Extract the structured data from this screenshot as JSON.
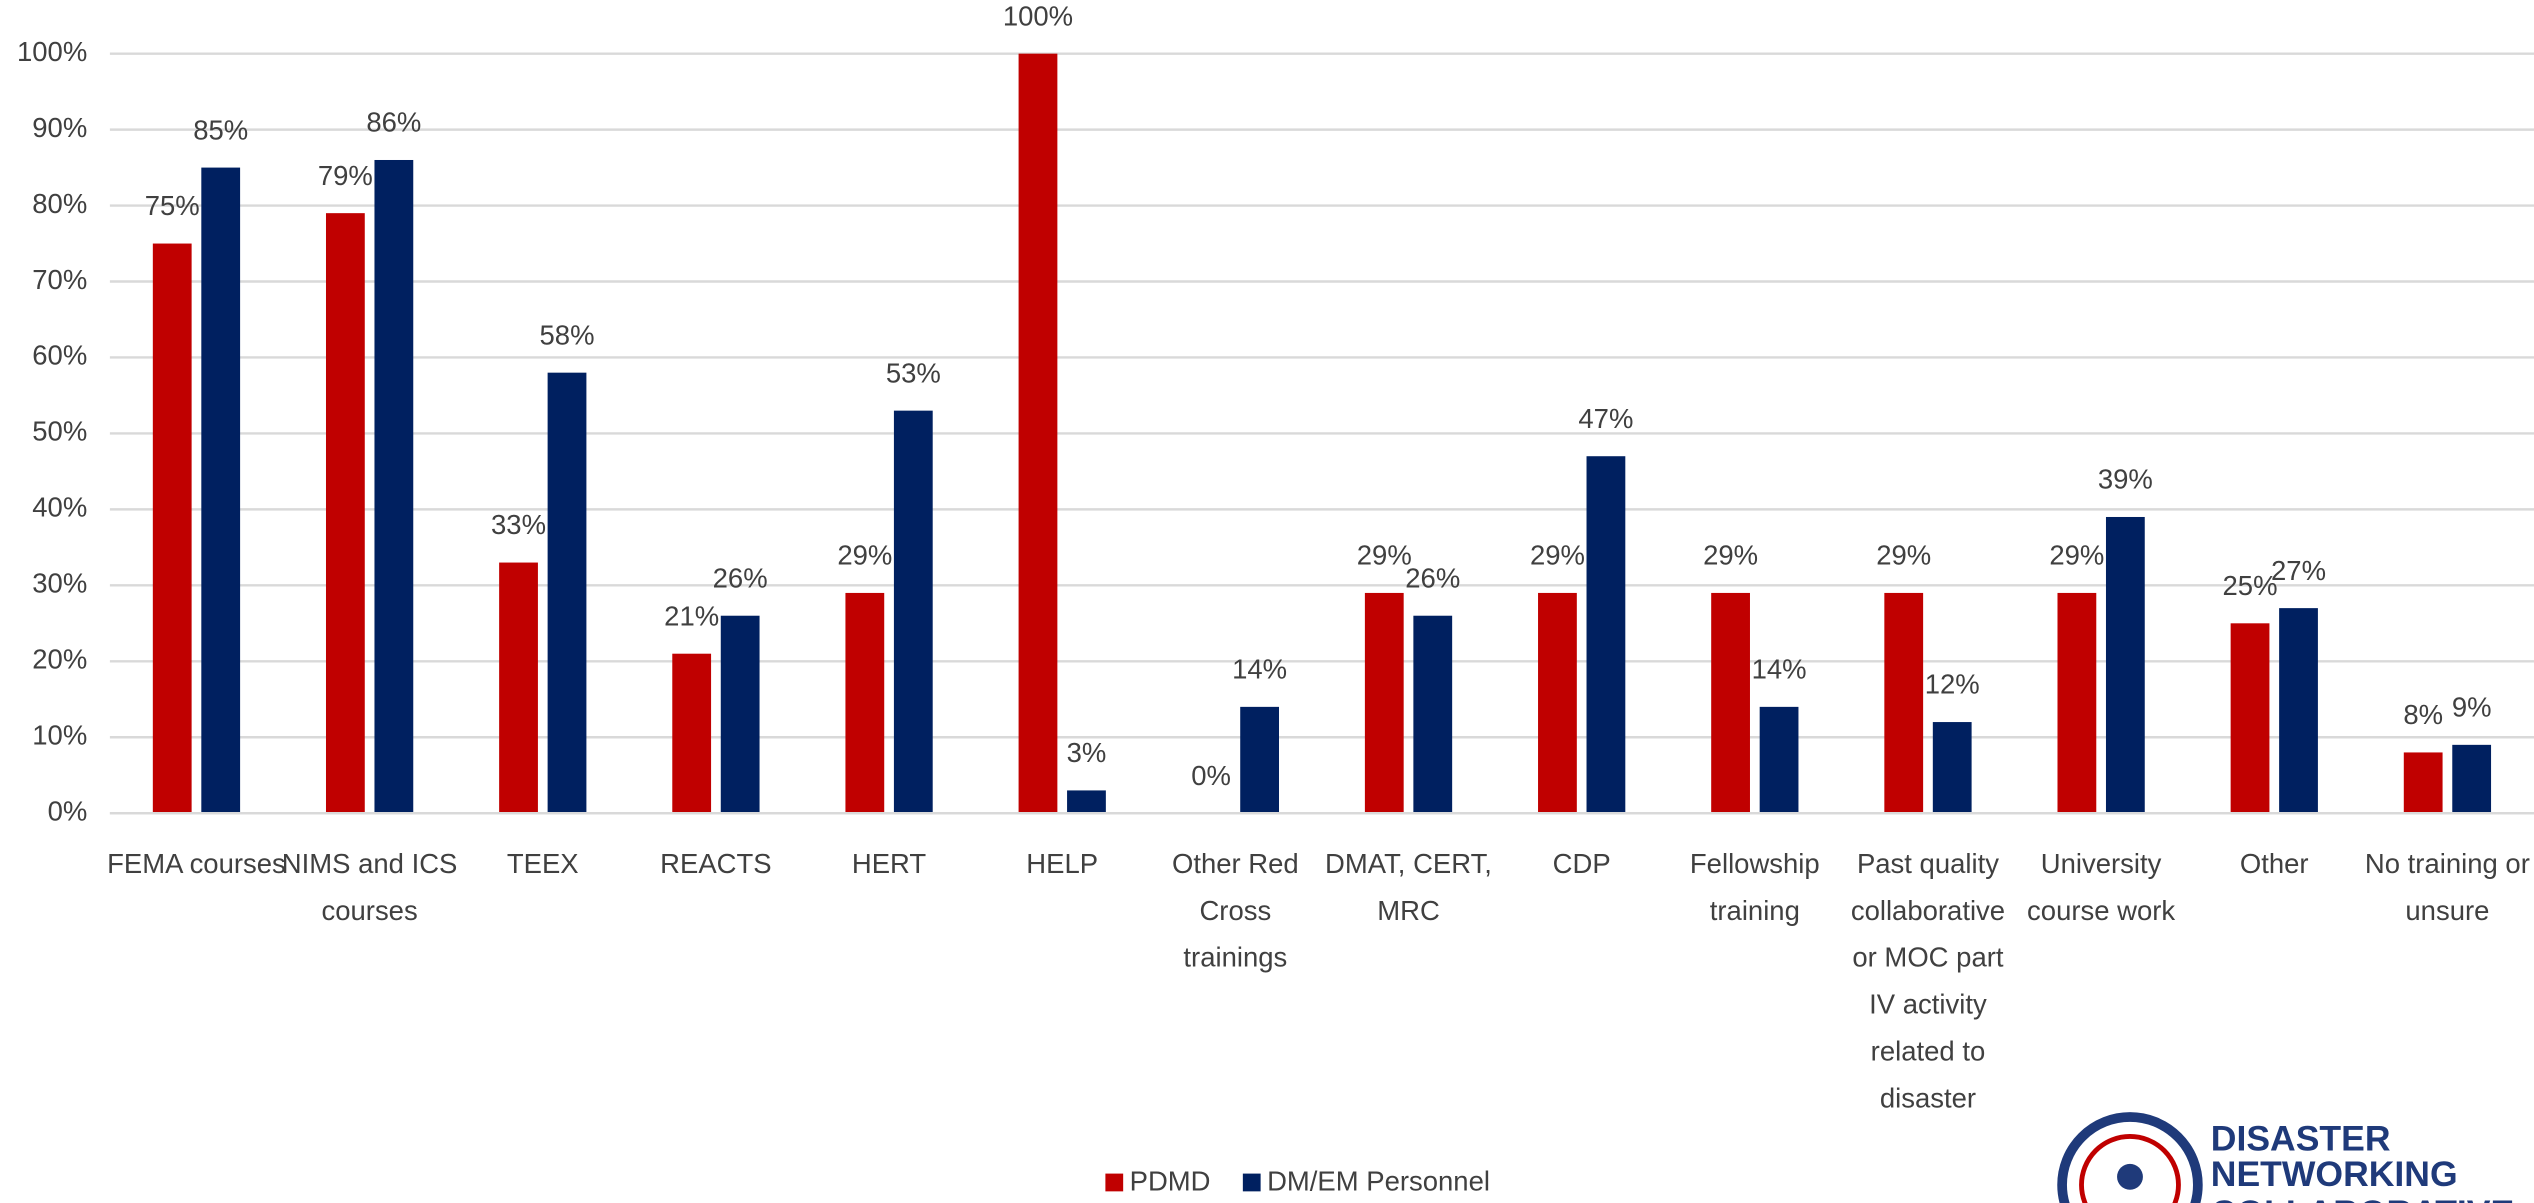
{
  "chart_data": {
    "type": "bar",
    "categories": [
      "FEMA courses",
      "NIMS and ICS courses",
      "TEEX",
      "REACTS",
      "HERT",
      "HELP",
      "Other Red Cross trainings",
      "DMAT, CERT, MRC",
      "CDP",
      "Fellowship training",
      "Past quality collaborative or MOC part IV activity related to disaster",
      "University course work",
      "Other",
      "No training or unsure"
    ],
    "series": [
      {
        "name": "PDMD",
        "color": "#c00000",
        "values": [
          75,
          79,
          33,
          21,
          29,
          100,
          0,
          29,
          29,
          29,
          29,
          29,
          25,
          8
        ],
        "value_labels": [
          "75%",
          "79%",
          "33%",
          "21%",
          "29%",
          "100%",
          "0%",
          "29%",
          "29%",
          "29%",
          "29%",
          "29%",
          "25%",
          "8%"
        ]
      },
      {
        "name": "DM/EM Personnel",
        "color": "#002060",
        "values": [
          85,
          86,
          58,
          26,
          53,
          3,
          14,
          26,
          47,
          14,
          12,
          39,
          27,
          9
        ],
        "value_labels": [
          "85%",
          "86%",
          "58%",
          "26%",
          "53%",
          "3%",
          "14%",
          "26%",
          "47%",
          "14%",
          "12%",
          "39%",
          "27%",
          "9%"
        ]
      }
    ],
    "ylim": [
      0,
      100
    ],
    "yticks": [
      {
        "value": 0,
        "label": "0%"
      },
      {
        "value": 10,
        "label": "10%"
      },
      {
        "value": 20,
        "label": "20%"
      },
      {
        "value": 30,
        "label": "30%"
      },
      {
        "value": 40,
        "label": "40%"
      },
      {
        "value": 50,
        "label": "50%"
      },
      {
        "value": 60,
        "label": "60%"
      },
      {
        "value": 70,
        "label": "70%"
      },
      {
        "value": 80,
        "label": "80%"
      },
      {
        "value": 90,
        "label": "90%"
      },
      {
        "value": 100,
        "label": "100%"
      }
    ],
    "grid": true,
    "legend": "bottom"
  },
  "logo": {
    "lines": [
      "DISASTER",
      "NETWORKING",
      "COLLABORATIVE"
    ]
  }
}
